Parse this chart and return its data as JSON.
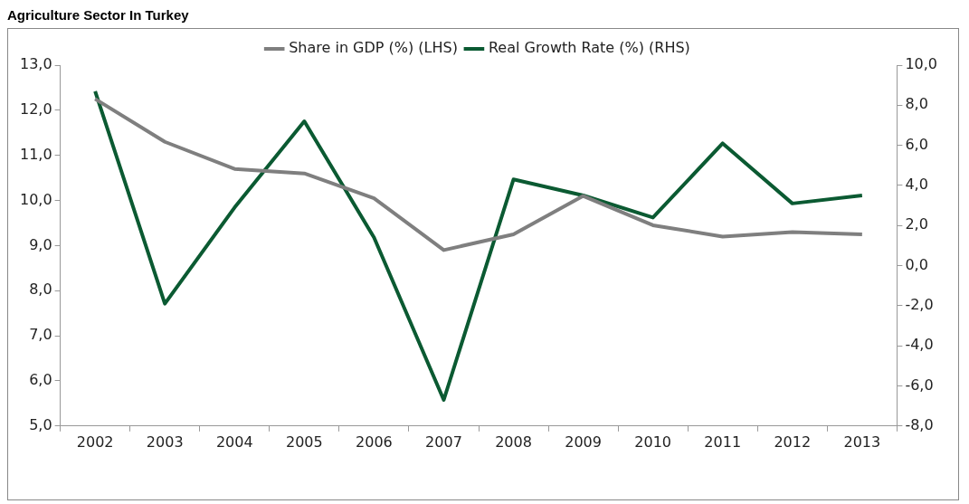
{
  "chart_data": {
    "type": "line",
    "title": "Agriculture Sector In Turkey",
    "categories": [
      "2002",
      "2003",
      "2004",
      "2005",
      "2006",
      "2007",
      "2008",
      "2009",
      "2010",
      "2011",
      "2012",
      "2013"
    ],
    "series": [
      {
        "name": "Share in GDP (%) (LHS)",
        "color": "#7f7f7f",
        "values": [
          12.25,
          11.3,
          10.7,
          10.6,
          10.05,
          8.9,
          9.25,
          10.1,
          9.45,
          9.2,
          9.3,
          9.25
        ]
      },
      {
        "name": "Real Growth Rate (%) (RHS)",
        "color": "#0b5a32",
        "axis": "y2",
        "values": [
          8.7,
          -1.9,
          2.9,
          7.2,
          1.4,
          -6.7,
          4.3,
          3.5,
          2.4,
          6.1,
          3.1,
          3.5
        ]
      }
    ],
    "ylim": [
      5,
      13
    ],
    "yticks": [
      {
        "value": 5,
        "label": "5,0"
      },
      {
        "value": 6,
        "label": "6,0"
      },
      {
        "value": 7,
        "label": "7,0"
      },
      {
        "value": 8,
        "label": "8,0"
      },
      {
        "value": 9,
        "label": "9,0"
      },
      {
        "value": 10,
        "label": "10,0"
      },
      {
        "value": 11,
        "label": "11,0"
      },
      {
        "value": 12,
        "label": "12,0"
      },
      {
        "value": 13,
        "label": "13,0"
      }
    ],
    "y2lim": [
      -8,
      10
    ],
    "y2ticks": [
      {
        "value": -8,
        "label": "-8,0"
      },
      {
        "value": -6,
        "label": "-6,0"
      },
      {
        "value": -4,
        "label": "-4,0"
      },
      {
        "value": -2,
        "label": "-2,0"
      },
      {
        "value": 0,
        "label": "0,0"
      },
      {
        "value": 2,
        "label": "2,0"
      },
      {
        "value": 4,
        "label": "4,0"
      },
      {
        "value": 6,
        "label": "6,0"
      },
      {
        "value": 8,
        "label": "8,0"
      },
      {
        "value": 10,
        "label": "10,0"
      }
    ],
    "grid": false,
    "legend": "top",
    "marker": "none",
    "line_style": "solid"
  }
}
